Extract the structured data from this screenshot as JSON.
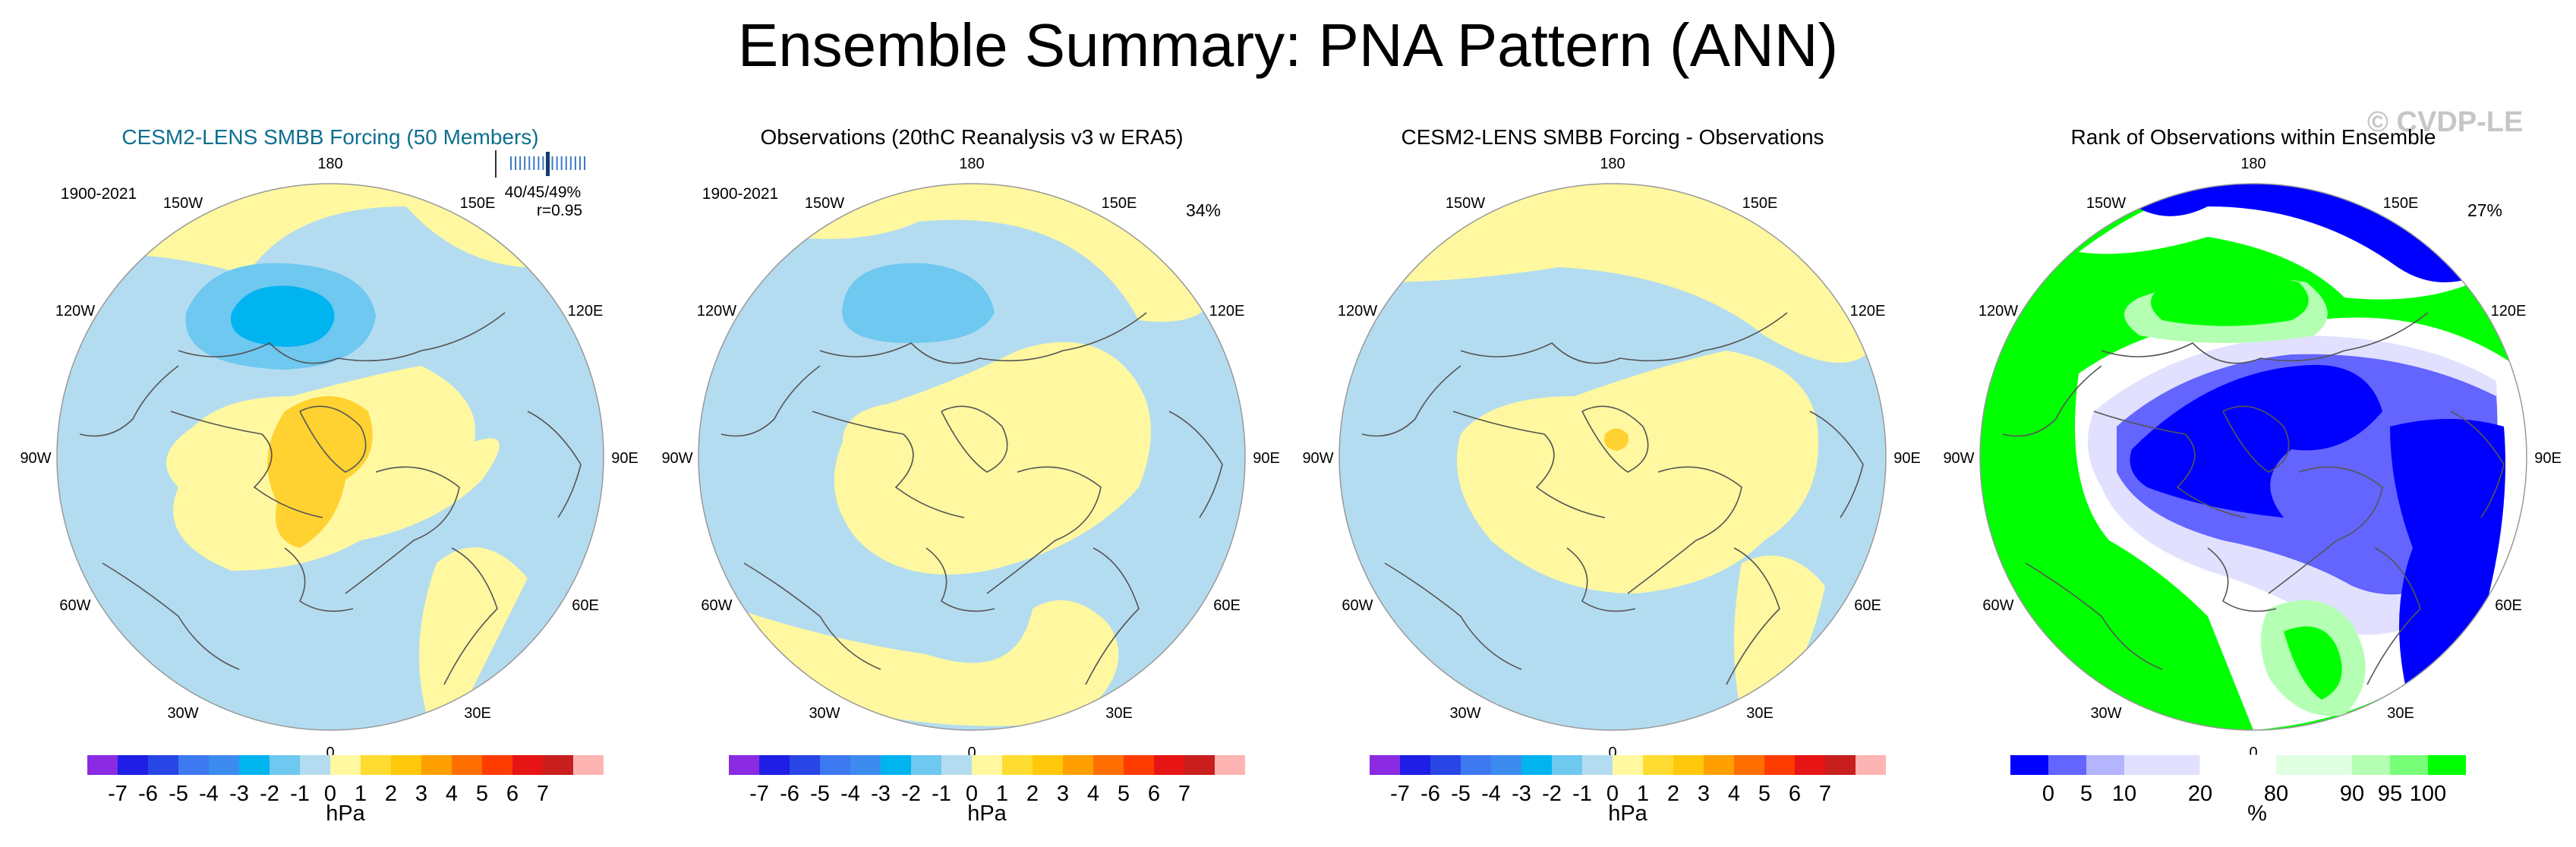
{
  "title": "Ensemble Summary: PNA Pattern (ANN)",
  "watermark": "© CVDP-LE",
  "colors": {
    "hpa_scale": [
      "#8a2be2",
      "#1e1ee6",
      "#2846e6",
      "#3c78f0",
      "#3c8cf0",
      "#00b4f0",
      "#6ec8f0",
      "#b4dcf0",
      "#fff8a0",
      "#ffdc32",
      "#ffc80a",
      "#ffa000",
      "#ff6e00",
      "#ff3c00",
      "#e61414",
      "#c81e1e",
      "#ffb4b4"
    ],
    "rank_scale": [
      "#0000ff",
      "#6464ff",
      "#b4b4ff",
      "#e1e1ff",
      "#ffffff",
      "#e1ffe1",
      "#b4ffb4",
      "#78ff78",
      "#00ff00"
    ],
    "title_blue": "#0e6f91",
    "coastline": "#555555"
  },
  "chart_data": [
    {
      "type": "heatmap",
      "projection": "polar-stereographic",
      "title": "CESM2-LENS SMBB Forcing (50 Members)",
      "period": "1900-2021",
      "stats": "40/45/49%",
      "correlation": "r=0.95",
      "ensemble_ticks": [
        1,
        2,
        3,
        4,
        5,
        6,
        7,
        8,
        9,
        10,
        11,
        12,
        13,
        14,
        15,
        16,
        17
      ],
      "ensemble_major_tick": 9,
      "lon_labels": [
        "180",
        "150E",
        "120E",
        "90E",
        "60E",
        "30E",
        "0",
        "30W",
        "60W",
        "90W",
        "120W",
        "150W"
      ],
      "colorbar": {
        "tick_labels": [
          "-7",
          "-6",
          "-5",
          "-4",
          "-3",
          "-2",
          "-1",
          "0",
          "1",
          "2",
          "3",
          "4",
          "5",
          "6",
          "7"
        ],
        "units": "hPa"
      }
    },
    {
      "type": "heatmap",
      "projection": "polar-stereographic",
      "title": "Observations (20thC Reanalysis v3 w ERA5)",
      "period": "1900-2021",
      "percent": "34%",
      "lon_labels": [
        "180",
        "150E",
        "120E",
        "90E",
        "60E",
        "30E",
        "0",
        "30W",
        "60W",
        "90W",
        "120W",
        "150W"
      ],
      "colorbar": {
        "tick_labels": [
          "-7",
          "-6",
          "-5",
          "-4",
          "-3",
          "-2",
          "-1",
          "0",
          "1",
          "2",
          "3",
          "4",
          "5",
          "6",
          "7"
        ],
        "units": "hPa"
      }
    },
    {
      "type": "heatmap",
      "projection": "polar-stereographic",
      "title": "CESM2-LENS SMBB Forcing - Observations",
      "lon_labels": [
        "180",
        "150E",
        "120E",
        "90E",
        "60E",
        "30E",
        "0",
        "30W",
        "60W",
        "90W",
        "120W",
        "150W"
      ],
      "colorbar": {
        "tick_labels": [
          "-7",
          "-6",
          "-5",
          "-4",
          "-3",
          "-2",
          "-1",
          "0",
          "1",
          "2",
          "3",
          "4",
          "5",
          "6",
          "7"
        ],
        "units": "hPa"
      }
    },
    {
      "type": "heatmap",
      "projection": "polar-stereographic",
      "title": "Rank of Observations within Ensemble",
      "percent": "27%",
      "lon_labels": [
        "180",
        "150E",
        "120E",
        "90E",
        "60E",
        "30E",
        "0",
        "30W",
        "60W",
        "90W",
        "120W",
        "150W"
      ],
      "colorbar": {
        "tick_labels": [
          "0",
          "5",
          "10",
          "20",
          "80",
          "90",
          "95",
          "100"
        ],
        "units": "%"
      }
    }
  ]
}
